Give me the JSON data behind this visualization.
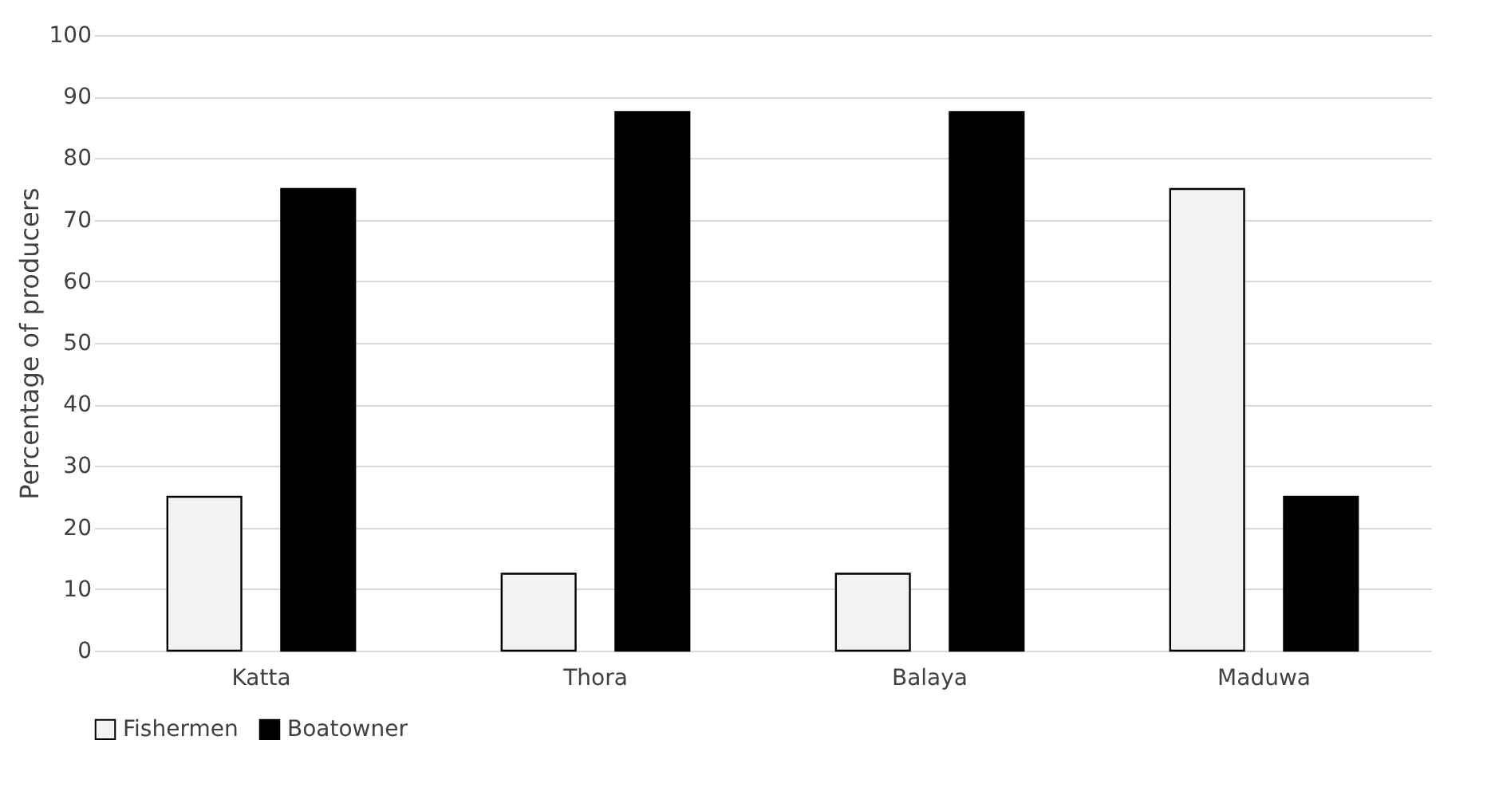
{
  "chart_data": {
    "type": "bar",
    "ylabel": "Percentage of producers",
    "categories": [
      "Katta",
      "Thora",
      "Balaya",
      "Maduwa"
    ],
    "series": [
      {
        "name": "Fishermen",
        "color": "#f2f2f2",
        "values": [
          25,
          12.5,
          12.5,
          75
        ]
      },
      {
        "name": "Boatowner",
        "color": "#000000",
        "values": [
          75,
          87.5,
          87.5,
          25
        ]
      }
    ],
    "ylim": [
      0,
      100
    ],
    "yticks": [
      0,
      10,
      20,
      30,
      40,
      50,
      60,
      70,
      80,
      90,
      100
    ],
    "grid": "y",
    "legend": "bottom"
  }
}
